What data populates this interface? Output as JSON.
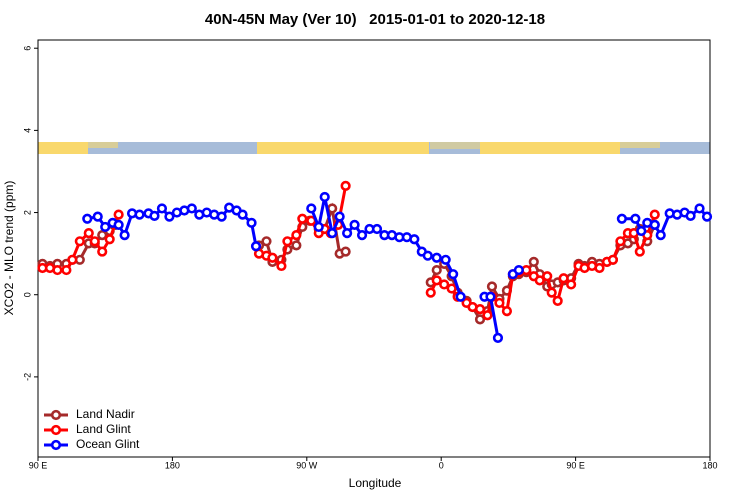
{
  "chart_data": {
    "type": "line",
    "title": "40N-45N May (Ver 10)   2015-01-01 to 2020-12-18",
    "xlabel": "Longitude",
    "ylabel": "XCO2 - MLO trend (ppm)",
    "xlim": [
      90,
      540
    ],
    "ylim": [
      -3.95,
      6.2
    ],
    "xticks": [
      {
        "value": 90,
        "label": "90 E"
      },
      180,
      {
        "value": 270,
        "label": "90 W"
      },
      {
        "value": 360,
        "label": "0"
      },
      {
        "value": 450,
        "label": "90 E"
      },
      {
        "value": 540,
        "label": "180"
      }
    ],
    "yticks": [
      -2,
      0,
      2,
      4,
      6
    ],
    "grid": false,
    "legend": "bottom-left",
    "series": [
      {
        "name": "Land Nadir",
        "color": "#a52a2a",
        "x": [
          93,
          98,
          103,
          109,
          113,
          118,
          124,
          128,
          133,
          138,
          142,
          190,
          238,
          243,
          247,
          253,
          257,
          263,
          267,
          272,
          278,
          282,
          287,
          292,
          296,
          325,
          353,
          357,
          362,
          367,
          371,
          377,
          381,
          386,
          391,
          394,
          399,
          404,
          408,
          412,
          417,
          422,
          426,
          431,
          434,
          438,
          442,
          447,
          452,
          456,
          461,
          466,
          471,
          475,
          480,
          485,
          489,
          493,
          498,
          503
        ],
        "values": [
          0.75,
          0.7,
          0.75,
          0.75,
          0.85,
          0.85,
          1.25,
          1.25,
          1.45,
          1.55,
          1.7,
          null,
          1.2,
          1.3,
          0.8,
          0.85,
          1.1,
          1.2,
          1.65,
          1.8,
          1.6,
          1.6,
          2.1,
          1.0,
          1.05,
          null,
          0.3,
          0.6,
          0.75,
          0.45,
          0.05,
          -0.15,
          -0.3,
          -0.6,
          -0.4,
          0.2,
          -0.1,
          0.1,
          0.45,
          0.5,
          0.55,
          0.8,
          0.5,
          0.2,
          0.25,
          0.3,
          0.35,
          0.4,
          0.75,
          0.7,
          0.8,
          0.75,
          0.8,
          0.85,
          1.2,
          1.25,
          1.35,
          1.6,
          1.3,
          1.7
        ]
      },
      {
        "name": "Land Glint",
        "color": "#ff0000",
        "x": [
          93,
          98,
          103,
          109,
          113,
          118,
          124,
          128,
          133,
          138,
          144,
          190,
          238,
          243,
          247,
          253,
          257,
          263,
          267,
          273,
          278,
          282,
          286,
          291,
          296,
          325,
          353,
          357,
          362,
          367,
          371,
          377,
          381,
          386,
          391,
          394,
          399,
          404,
          408,
          412,
          417,
          422,
          426,
          431,
          434,
          438,
          442,
          447,
          452,
          456,
          461,
          466,
          471,
          475,
          480,
          485,
          489,
          493,
          498,
          503
        ],
        "values": [
          0.65,
          0.65,
          0.6,
          0.6,
          0.85,
          1.3,
          1.5,
          1.3,
          1.05,
          1.35,
          1.95,
          null,
          1.0,
          0.95,
          0.9,
          0.7,
          1.3,
          1.45,
          1.85,
          1.8,
          1.5,
          1.6,
          1.5,
          1.7,
          2.65,
          null,
          0.05,
          0.35,
          0.25,
          0.15,
          -0.05,
          -0.2,
          -0.3,
          -0.35,
          -0.5,
          -0.05,
          -0.2,
          -0.4,
          0.5,
          0.55,
          0.6,
          0.45,
          0.35,
          0.45,
          0.05,
          -0.15,
          0.4,
          0.25,
          0.7,
          0.65,
          0.7,
          0.65,
          0.8,
          0.85,
          1.3,
          1.5,
          1.5,
          1.05,
          1.45,
          1.95
        ]
      },
      {
        "name": "Ocean Glint",
        "color": "#0000ff",
        "x": [
          123,
          130,
          135,
          140,
          144,
          148,
          153,
          158,
          164,
          168,
          173,
          178,
          183,
          188,
          193,
          198,
          203,
          208,
          213,
          218,
          223,
          227,
          233,
          236,
          255,
          273,
          278,
          282,
          287,
          292,
          297,
          302,
          307,
          312,
          317,
          322,
          327,
          332,
          337,
          342,
          347,
          351,
          357,
          363,
          368,
          373,
          380,
          389,
          393,
          398,
          402,
          408,
          412,
          450,
          481,
          490,
          494,
          498,
          503,
          507,
          513,
          518,
          523,
          527,
          533,
          538
        ],
        "values": [
          1.85,
          1.9,
          1.65,
          1.75,
          1.7,
          1.45,
          1.98,
          1.95,
          1.98,
          1.92,
          2.1,
          1.9,
          2.0,
          2.05,
          2.1,
          1.95,
          2.0,
          1.95,
          1.9,
          2.12,
          2.05,
          1.95,
          1.75,
          1.18,
          null,
          2.1,
          1.65,
          2.38,
          1.5,
          1.9,
          1.5,
          1.7,
          1.45,
          1.6,
          1.6,
          1.45,
          1.45,
          1.4,
          1.4,
          1.35,
          1.05,
          0.95,
          0.9,
          0.85,
          0.5,
          -0.05,
          null,
          -0.05,
          -0.05,
          -1.05,
          null,
          0.5,
          0.6,
          null,
          1.85,
          1.85,
          1.55,
          1.75,
          1.7,
          1.45,
          1.98,
          1.95,
          2.0,
          1.92,
          2.1,
          1.9
        ]
      }
    ]
  }
}
